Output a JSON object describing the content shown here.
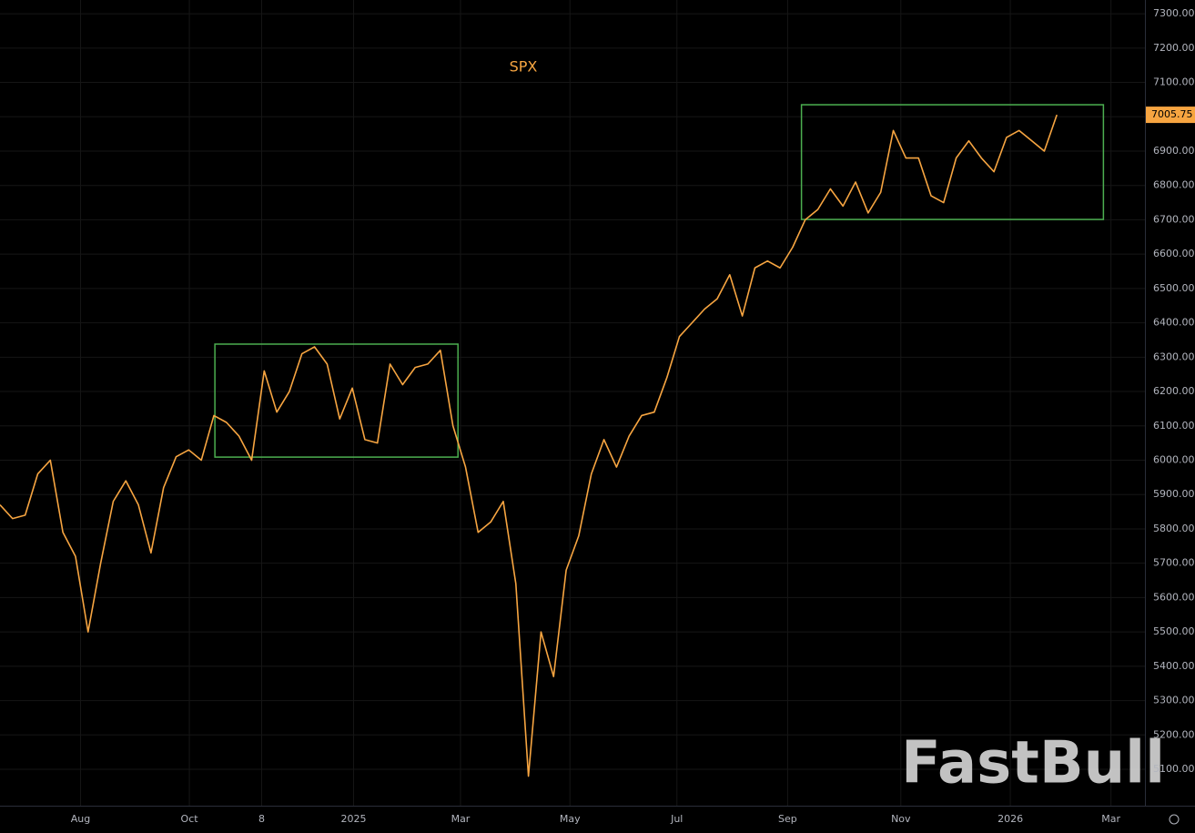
{
  "chart_data": {
    "type": "line",
    "title": "SPX",
    "watermark": "FastBull",
    "color": "#f7a541",
    "box_color": "#4caf50",
    "grid": true,
    "xlim": [
      0,
      91
    ],
    "ylim": [
      4994,
      7340
    ],
    "xticks": [
      {
        "value": 6.4,
        "label": "Aug"
      },
      {
        "value": 15.05,
        "label": "Oct"
      },
      {
        "value": 20.8,
        "label": "8"
      },
      {
        "value": 28.1,
        "label": "2025"
      },
      {
        "value": 36.6,
        "label": "Mar"
      },
      {
        "value": 45.3,
        "label": "May"
      },
      {
        "value": 53.8,
        "label": "Jul"
      },
      {
        "value": 62.6,
        "label": "Sep"
      },
      {
        "value": 71.6,
        "label": "Nov"
      },
      {
        "value": 80.3,
        "label": "2026"
      },
      {
        "value": 88.3,
        "label": "Mar"
      }
    ],
    "yticks": [
      {
        "value": 5100,
        "label": "5100.00"
      },
      {
        "value": 5200,
        "label": "5200.00"
      },
      {
        "value": 5300,
        "label": "5300.00"
      },
      {
        "value": 5400,
        "label": "5400.00"
      },
      {
        "value": 5500,
        "label": "5500.00"
      },
      {
        "value": 5600,
        "label": "5600.00"
      },
      {
        "value": 5700,
        "label": "5700.00"
      },
      {
        "value": 5800,
        "label": "5800.00"
      },
      {
        "value": 5900,
        "label": "5900.00"
      },
      {
        "value": 6000,
        "label": "6000.00"
      },
      {
        "value": 6100,
        "label": "6100.00"
      },
      {
        "value": 6200,
        "label": "6200.00"
      },
      {
        "value": 6300,
        "label": "6300.00"
      },
      {
        "value": 6400,
        "label": "6400.00"
      },
      {
        "value": 6500,
        "label": "6500.00"
      },
      {
        "value": 6600,
        "label": "6600.00"
      },
      {
        "value": 6700,
        "label": "6700.00"
      },
      {
        "value": 6800,
        "label": "6800.00"
      },
      {
        "value": 6900,
        "label": "6900.00"
      },
      {
        "value": 7000,
        "label": "7000.00"
      },
      {
        "value": 7100,
        "label": "7100.00"
      },
      {
        "value": 7200,
        "label": "7200.00"
      },
      {
        "value": 7300,
        "label": "7300.00"
      }
    ],
    "last_price": 7005.75,
    "x": [
      0,
      1,
      2,
      3,
      4,
      5,
      6,
      7,
      8,
      9,
      10,
      11,
      12,
      13,
      14,
      15,
      16,
      17,
      18,
      19,
      20,
      21,
      22,
      23,
      24,
      25,
      26,
      27,
      28,
      29,
      30,
      31,
      32,
      33,
      34,
      35,
      36,
      37,
      38,
      39,
      40,
      41,
      42,
      43,
      44,
      45,
      46,
      47,
      48,
      49,
      50,
      51,
      52,
      53,
      54,
      55,
      56,
      57,
      58,
      59,
      60,
      61,
      62,
      63,
      64,
      65,
      66,
      67,
      68,
      69,
      70,
      71,
      72,
      73,
      74,
      75,
      76,
      77,
      78,
      79,
      80,
      81,
      82,
      83,
      84
    ],
    "values": [
      5870,
      5830,
      5840,
      5960,
      6000,
      5790,
      5720,
      5500,
      5700,
      5880,
      5940,
      5870,
      5730,
      5920,
      6010,
      6030,
      6000,
      6130,
      6110,
      6070,
      6000,
      6260,
      6140,
      6200,
      6310,
      6330,
      6280,
      6120,
      6210,
      6060,
      6050,
      6280,
      6220,
      6270,
      6280,
      6320,
      6100,
      5980,
      5790,
      5820,
      5880,
      5640,
      5080,
      5500,
      5370,
      5680,
      5780,
      5960,
      6060,
      5980,
      6070,
      6130,
      6140,
      6240,
      6360,
      6400,
      6440,
      6470,
      6540,
      6420,
      6560,
      6580,
      6560,
      6620,
      6700,
      6730,
      6790,
      6740,
      6810,
      6720,
      6780,
      6960,
      6880,
      6880,
      6770,
      6750,
      6880,
      6930,
      6880,
      6840,
      6940,
      6960,
      6930,
      6900,
      7005.75
    ],
    "boxes": [
      {
        "x": [
          17.08,
          36.4
        ],
        "y": [
          6009,
          6338
        ]
      },
      {
        "x": [
          63.7,
          87.7
        ],
        "y": [
          6701,
          7035
        ]
      }
    ]
  }
}
